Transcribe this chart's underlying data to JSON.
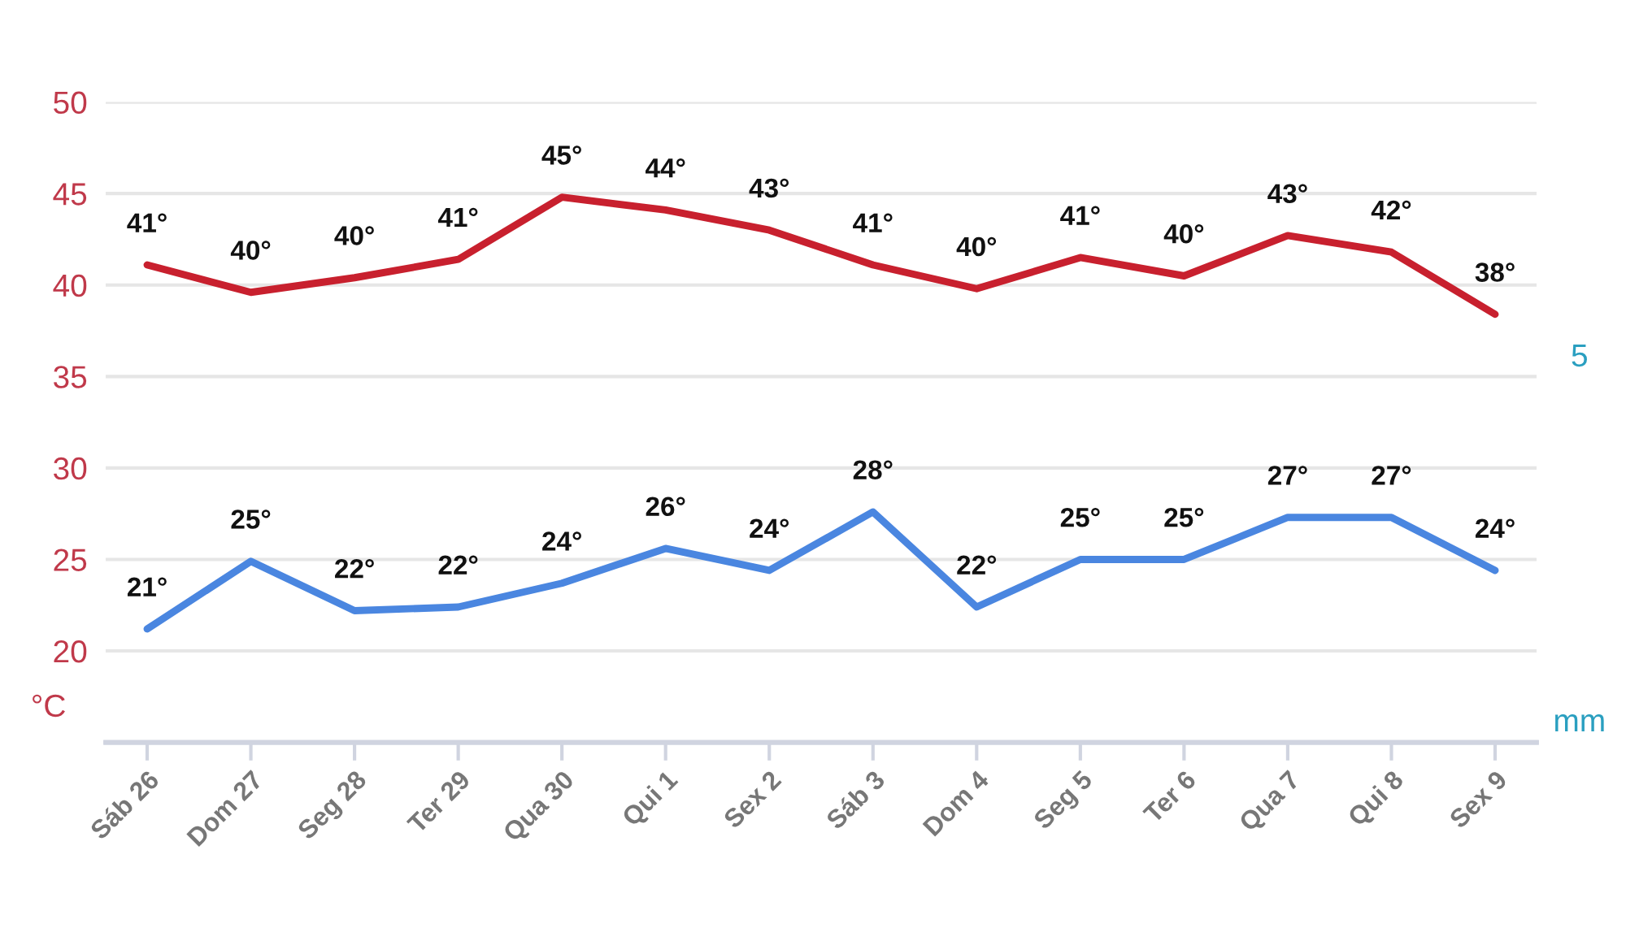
{
  "chart_data": {
    "type": "line",
    "categories": [
      "Sáb 26",
      "Dom 27",
      "Seg 28",
      "Ter 29",
      "Qua 30",
      "Qui 1",
      "Sex 2",
      "Sáb 3",
      "Dom 4",
      "Seg 5",
      "Ter 6",
      "Qua 7",
      "Qui 8",
      "Sex 9"
    ],
    "series": [
      {
        "color": "#c8202e",
        "values": [
          41.1,
          39.6,
          40.4,
          41.4,
          44.8,
          44.1,
          43.0,
          41.1,
          39.8,
          41.5,
          40.5,
          42.7,
          41.8,
          38.4
        ],
        "value_labels": [
          "41°",
          "40°",
          "40°",
          "41°",
          "45°",
          "44°",
          "43°",
          "41°",
          "40°",
          "41°",
          "40°",
          "43°",
          "42°",
          "38°"
        ]
      },
      {
        "color": "#4a86e0",
        "values": [
          21.2,
          24.9,
          22.2,
          22.4,
          23.7,
          25.6,
          24.4,
          27.6,
          22.4,
          25.0,
          25.0,
          27.3,
          27.3,
          24.4
        ],
        "value_labels": [
          "21°",
          "25°",
          "22°",
          "22°",
          "24°",
          "26°",
          "24°",
          "28°",
          "22°",
          "25°",
          "25°",
          "27°",
          "27°",
          "24°"
        ]
      }
    ],
    "ylabel": "°C",
    "annotations": [
      "5",
      "mm"
    ],
    "ylim": [
      15,
      50
    ],
    "yticks": [
      20,
      25,
      30,
      35,
      40,
      45,
      50
    ],
    "grid": "y",
    "marker": "none",
    "line_style": "solid"
  }
}
